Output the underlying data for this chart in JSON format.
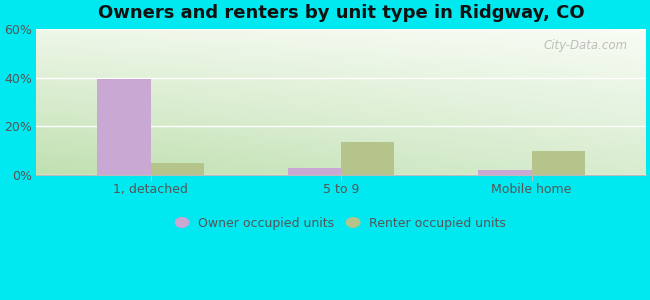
{
  "title": "Owners and renters by unit type in Ridgway, CO",
  "categories": [
    "1, detached",
    "5 to 9",
    "Mobile home"
  ],
  "owner_values": [
    39.5,
    3.0,
    2.0
  ],
  "renter_values": [
    5.0,
    13.5,
    10.0
  ],
  "owner_color": "#c9a8d4",
  "renter_color": "#b5c48a",
  "ylim": [
    0,
    60
  ],
  "yticks": [
    0,
    20,
    40,
    60
  ],
  "ytick_labels": [
    "0%",
    "20%",
    "40%",
    "60%"
  ],
  "legend_owner": "Owner occupied units",
  "legend_renter": "Renter occupied units",
  "bg_top_color": "#e8f5e0",
  "bg_bottom_color": "#c8e8b8",
  "bg_top_right_color": "#f5faf0",
  "outer_bg": "#00e8f0",
  "bar_width": 0.28,
  "watermark": "City-Data.com",
  "title_fontsize": 13,
  "tick_fontsize": 9,
  "legend_fontsize": 9
}
